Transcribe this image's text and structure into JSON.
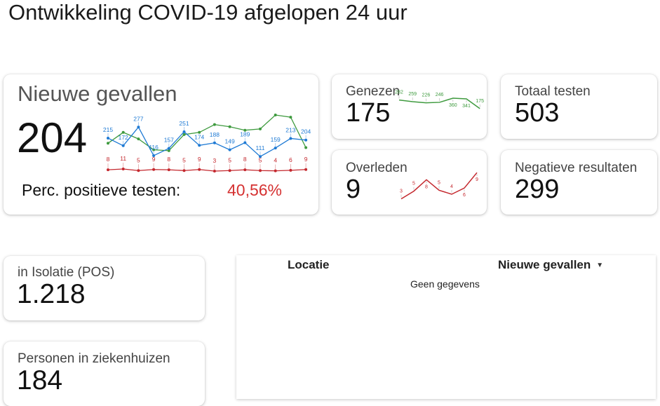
{
  "page": {
    "title": "Ontwikkeling COVID-19 afgelopen 24 uur"
  },
  "cards": {
    "nieuwe_gevallen": {
      "label": "Nieuwe gevallen",
      "value": "204",
      "perc_label": "Perc. positieve testen:",
      "perc_value": "40,56%"
    },
    "genezen": {
      "label": "Genezen",
      "value": "175"
    },
    "totaal_testen": {
      "label": "Totaal testen",
      "value": "503"
    },
    "overleden": {
      "label": "Overleden",
      "value": "9"
    },
    "negatieve_resultaten": {
      "label": "Negatieve resultaten",
      "value": "299"
    },
    "isolatie": {
      "label": "in Isolatie (POS)",
      "value": "1.218"
    },
    "ziekenhuizen": {
      "label": "Personen in ziekenhuizen",
      "value": "184"
    }
  },
  "table": {
    "columns": [
      {
        "label": "Locatie"
      },
      {
        "label": "Nieuwe gevallen",
        "sort_icon": "sort-desc-icon"
      }
    ],
    "empty_text": "Geen gegevens"
  },
  "colors": {
    "blue": "#1e7ad4",
    "green": "#3e9a3e",
    "red": "#c4282e",
    "perc": "#d53131"
  },
  "chart_data": [
    {
      "type": "line",
      "series": [
        {
          "values": [
            215,
            172,
            277,
            116,
            157,
            251,
            174,
            188,
            149,
            189,
            111,
            159,
            213,
            204
          ],
          "labels_shown": true
        },
        {
          "values": [
            null,
            null,
            null,
            null,
            null,
            null,
            null,
            null,
            null,
            null,
            null,
            null,
            null,
            null
          ],
          "labels_shown": false
        },
        {
          "values": [
            8,
            11,
            5,
            9,
            8,
            5,
            9,
            3,
            5,
            8,
            5,
            4,
            6,
            9
          ],
          "labels_shown": true
        }
      ],
      "green_relative": [
        0.35,
        0.6,
        0.45,
        0.2,
        0.18,
        0.55,
        0.6,
        0.78,
        0.73,
        0.65,
        0.68,
        1.0,
        0.95,
        0.25
      ]
    },
    {
      "type": "line",
      "series": [
        {
          "values": [
            282,
            259,
            226,
            246,
            360,
            341,
            175
          ],
          "labels": [
            "282",
            "259",
            "226",
            "246",
            "360",
            "341",
            "175"
          ]
        }
      ],
      "levels": [
        0.92,
        0.85,
        0.8,
        0.82,
        1.0,
        0.97,
        0.55
      ]
    },
    {
      "type": "line",
      "series": [
        {
          "values": [
            3,
            5,
            8,
            5,
            4,
            6,
            9
          ],
          "labels": [
            "3",
            "5",
            "8",
            "5",
            "4",
            "6",
            "9"
          ]
        }
      ],
      "levels": [
        0.1,
        0.35,
        0.72,
        0.38,
        0.25,
        0.45,
        0.95
      ]
    }
  ]
}
